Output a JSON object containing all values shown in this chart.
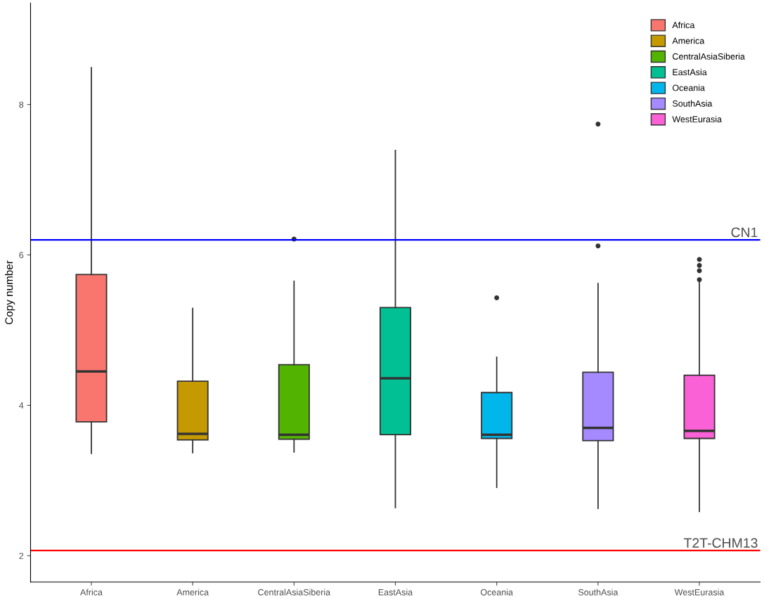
{
  "chart_data": {
    "type": "box",
    "ylabel": "Copy number",
    "categories": [
      "Africa",
      "America",
      "CentralAsiaSiberia",
      "EastAsia",
      "Oceania",
      "SouthAsia",
      "WestEurasia"
    ],
    "series": [
      {
        "name": "Africa",
        "color": "#f8766d",
        "boxes": [
          {
            "low": 3.36,
            "q1": 3.78,
            "median": 4.45,
            "q3": 5.74,
            "high": 8.49
          },
          null,
          null,
          null,
          null,
          null,
          null
        ]
      },
      {
        "name": "America",
        "color": "#c49a00",
        "boxes": [
          null,
          {
            "low": 3.37,
            "q1": 3.54,
            "median": 3.62,
            "q3": 4.32,
            "high": 5.29
          },
          null,
          null,
          null,
          null,
          null
        ]
      },
      {
        "name": "CentralAsiaSiberia",
        "color": "#53b400",
        "boxes": [
          null,
          null,
          {
            "low": 3.38,
            "q1": 3.55,
            "median": 3.61,
            "q3": 4.54,
            "high": 5.65,
            "outliers": [
              6.21
            ]
          },
          null,
          null,
          null,
          null
        ]
      },
      {
        "name": "EastAsia",
        "color": "#00c094",
        "boxes": [
          null,
          null,
          null,
          {
            "low": 2.64,
            "q1": 3.61,
            "median": 4.36,
            "q3": 5.3,
            "high": 7.39
          },
          null,
          null,
          null
        ]
      },
      {
        "name": "Oceania",
        "color": "#00b6eb",
        "boxes": [
          null,
          null,
          null,
          null,
          {
            "low": 2.91,
            "q1": 3.56,
            "median": 3.61,
            "q3": 4.17,
            "high": 4.64,
            "outliers": [
              5.43
            ]
          },
          null,
          null
        ]
      },
      {
        "name": "SouthAsia",
        "color": "#a58aff",
        "boxes": [
          null,
          null,
          null,
          null,
          null,
          {
            "low": 2.63,
            "q1": 3.53,
            "median": 3.7,
            "q3": 4.44,
            "high": 5.62,
            "outliers": [
              6.12,
              7.74
            ]
          },
          null
        ]
      },
      {
        "name": "WestEurasia",
        "color": "#fb61d7",
        "boxes": [
          null,
          null,
          null,
          null,
          null,
          null,
          {
            "low": 2.59,
            "q1": 3.56,
            "median": 3.66,
            "q3": 4.4,
            "high": 5.64,
            "outliers": [
              5.67,
              5.79,
              5.86,
              5.94
            ]
          }
        ]
      }
    ],
    "ylim": [
      1.65,
      9.35
    ],
    "yticks": [
      2,
      4,
      6,
      8
    ],
    "ref_lines": [
      {
        "axis": "y",
        "value": 6.2,
        "label": "CN1",
        "color": "#0000ff"
      },
      {
        "axis": "y",
        "value": 2.07,
        "label": "T2T-CHM13",
        "color": "#ff0000"
      }
    ],
    "grid": false,
    "legend": "top right"
  }
}
